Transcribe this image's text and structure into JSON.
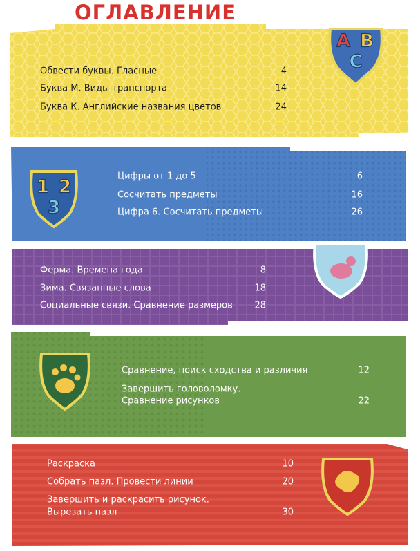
{
  "header": {
    "title": "ОГЛАВЛЕНИЕ"
  },
  "sections": [
    {
      "badge": [
        "A",
        "B",
        "C"
      ],
      "entries": [
        {
          "lines": [
            "Обвести буквы. Гласные"
          ],
          "page": 4
        },
        {
          "lines": [
            "Буква М. Виды транспорта"
          ],
          "page": 14
        },
        {
          "lines": [
            "Буква К. Английские названия цветов"
          ],
          "page": 24
        }
      ]
    },
    {
      "badge": [
        "1",
        "2",
        "3"
      ],
      "entries": [
        {
          "lines": [
            "Цифры от 1 до 5"
          ],
          "page": 6
        },
        {
          "lines": [
            "Сосчитать предметы"
          ],
          "page": 16
        },
        {
          "lines": [
            "Цифра 6. Сосчитать предметы"
          ],
          "page": 26
        }
      ]
    },
    {
      "entries": [
        {
          "lines": [
            "Ферма. Времена года"
          ],
          "page": 8
        },
        {
          "lines": [
            "Зима. Связанные слова"
          ],
          "page": 18
        },
        {
          "lines": [
            "Социальные связи. Сравнение размеров"
          ],
          "page": 28
        }
      ]
    },
    {
      "entries": [
        {
          "lines": [
            "Сравнение, поиск сходства и различия"
          ],
          "page": 12
        },
        {
          "lines": [
            "Завершить головоломку.",
            "Сравнение рисунков"
          ],
          "page": 22
        }
      ]
    },
    {
      "entries": [
        {
          "lines": [
            "Раскраска"
          ],
          "page": 10
        },
        {
          "lines": [
            "Собрать пазл. Провести линии"
          ],
          "page": 20
        },
        {
          "lines": [
            "Завершить и раскрасить рисунок.",
            "Вырезать пазл"
          ],
          "page": 30
        }
      ]
    }
  ]
}
